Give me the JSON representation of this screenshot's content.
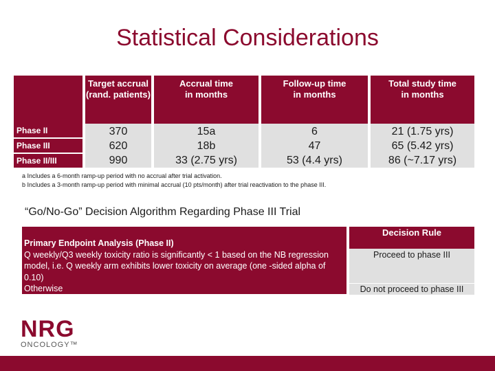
{
  "title": "Statistical Considerations",
  "table": {
    "headers": [
      "Target accrual (rand. patients)",
      "Accrual time in months",
      "Follow-up time in months",
      "Total study time in months"
    ],
    "rows": [
      {
        "label": "Phase II",
        "cells": [
          "370",
          "15a",
          "6",
          "21 (1.75 yrs)"
        ]
      },
      {
        "label": "Phase III",
        "cells": [
          "620",
          "18b",
          "47",
          "65 (5.42 yrs)"
        ]
      },
      {
        "label": "Phase II/III",
        "cells": [
          "990",
          "33 (2.75 yrs)",
          "53 (4.4 yrs)",
          "86 (~7.17 yrs)"
        ]
      }
    ]
  },
  "footnotes": [
    "a Includes a 6-month ramp-up period with no accrual after trial activation.",
    "b Includes a 3-month ramp-up period with minimal accrual (10 pts/month) after trial reactivation to the phase III."
  ],
  "decision": {
    "title": "“Go/No-Go” Decision Algorithm Regarding Phase III Trial",
    "left_header": "Primary Endpoint Analysis (Phase II)",
    "left_row1": "Q weekly/Q3 weekly toxicity ratio is significantly < 1 based on the NB regression model, i.e. Q weekly arm exhibits lower toxicity on average (one -sided alpha of 0.10)",
    "left_row2": "Otherwise",
    "right_header": "Decision Rule",
    "right_row1": "Proceed to phase III",
    "right_row2": "Do not proceed to phase III"
  },
  "logo": {
    "main": "NRG",
    "sub": "ONCOLOGY™"
  },
  "colors": {
    "brand": "#8b0a2e",
    "cell": "#e0e0e0"
  }
}
